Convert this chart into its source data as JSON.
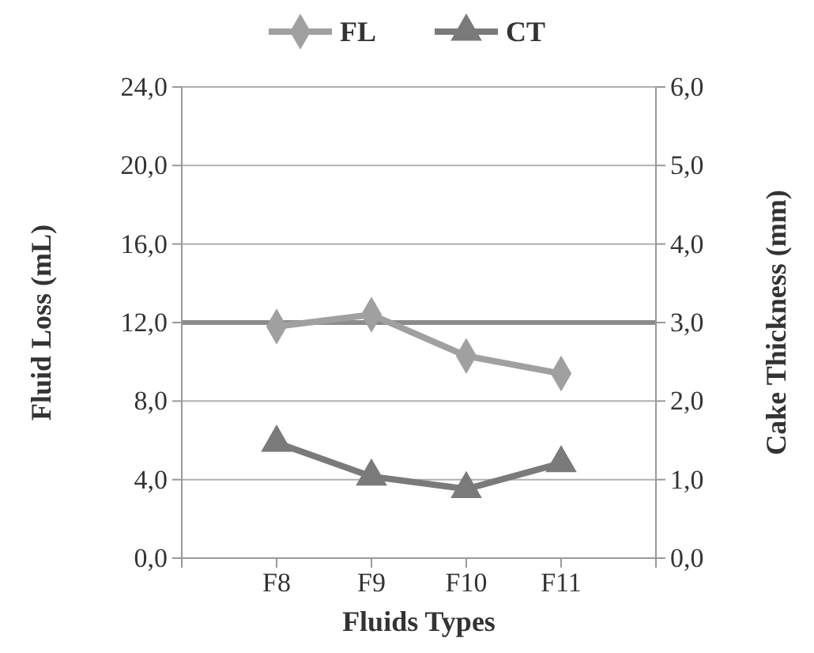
{
  "chart_data": {
    "type": "line",
    "xlabel": "Fluids Types",
    "ylabel": "Fluid Loss (mL)",
    "y2label": "Cake Thickness (mm)",
    "categories": [
      "F8",
      "F9",
      "F10",
      "F11"
    ],
    "series": [
      {
        "name": "FL",
        "color": "#a0a0a0",
        "marker": "diamond",
        "values": [
          11.8,
          12.4,
          10.3,
          9.4
        ]
      },
      {
        "name": "CT",
        "color": "#7a7a7a",
        "marker": "triangle",
        "axis": "y2",
        "values": [
          1.47,
          1.04,
          0.88,
          1.21
        ]
      }
    ],
    "ylim": [
      0,
      24
    ],
    "yticks": [
      {
        "value": 0,
        "label": "0,0"
      },
      {
        "value": 4,
        "label": "4,0"
      },
      {
        "value": 8,
        "label": "8,0"
      },
      {
        "value": 12,
        "label": "12,0"
      },
      {
        "value": 16,
        "label": "16,0"
      },
      {
        "value": 20,
        "label": "20,0"
      },
      {
        "value": 24,
        "label": "24,0"
      }
    ],
    "y2lim": [
      0,
      6
    ],
    "y2ticks": [
      {
        "value": 0,
        "label": "0,0"
      },
      {
        "value": 1,
        "label": "1,0"
      },
      {
        "value": 2,
        "label": "2,0"
      },
      {
        "value": 3,
        "label": "3,0"
      },
      {
        "value": 4,
        "label": "4,0"
      },
      {
        "value": 5,
        "label": "5,0"
      },
      {
        "value": 6,
        "label": "6,0"
      }
    ],
    "ref_lines": [
      {
        "axis": "y",
        "value": 12,
        "color": "#8c8c8c"
      }
    ],
    "grid": "y",
    "legend": "top"
  }
}
